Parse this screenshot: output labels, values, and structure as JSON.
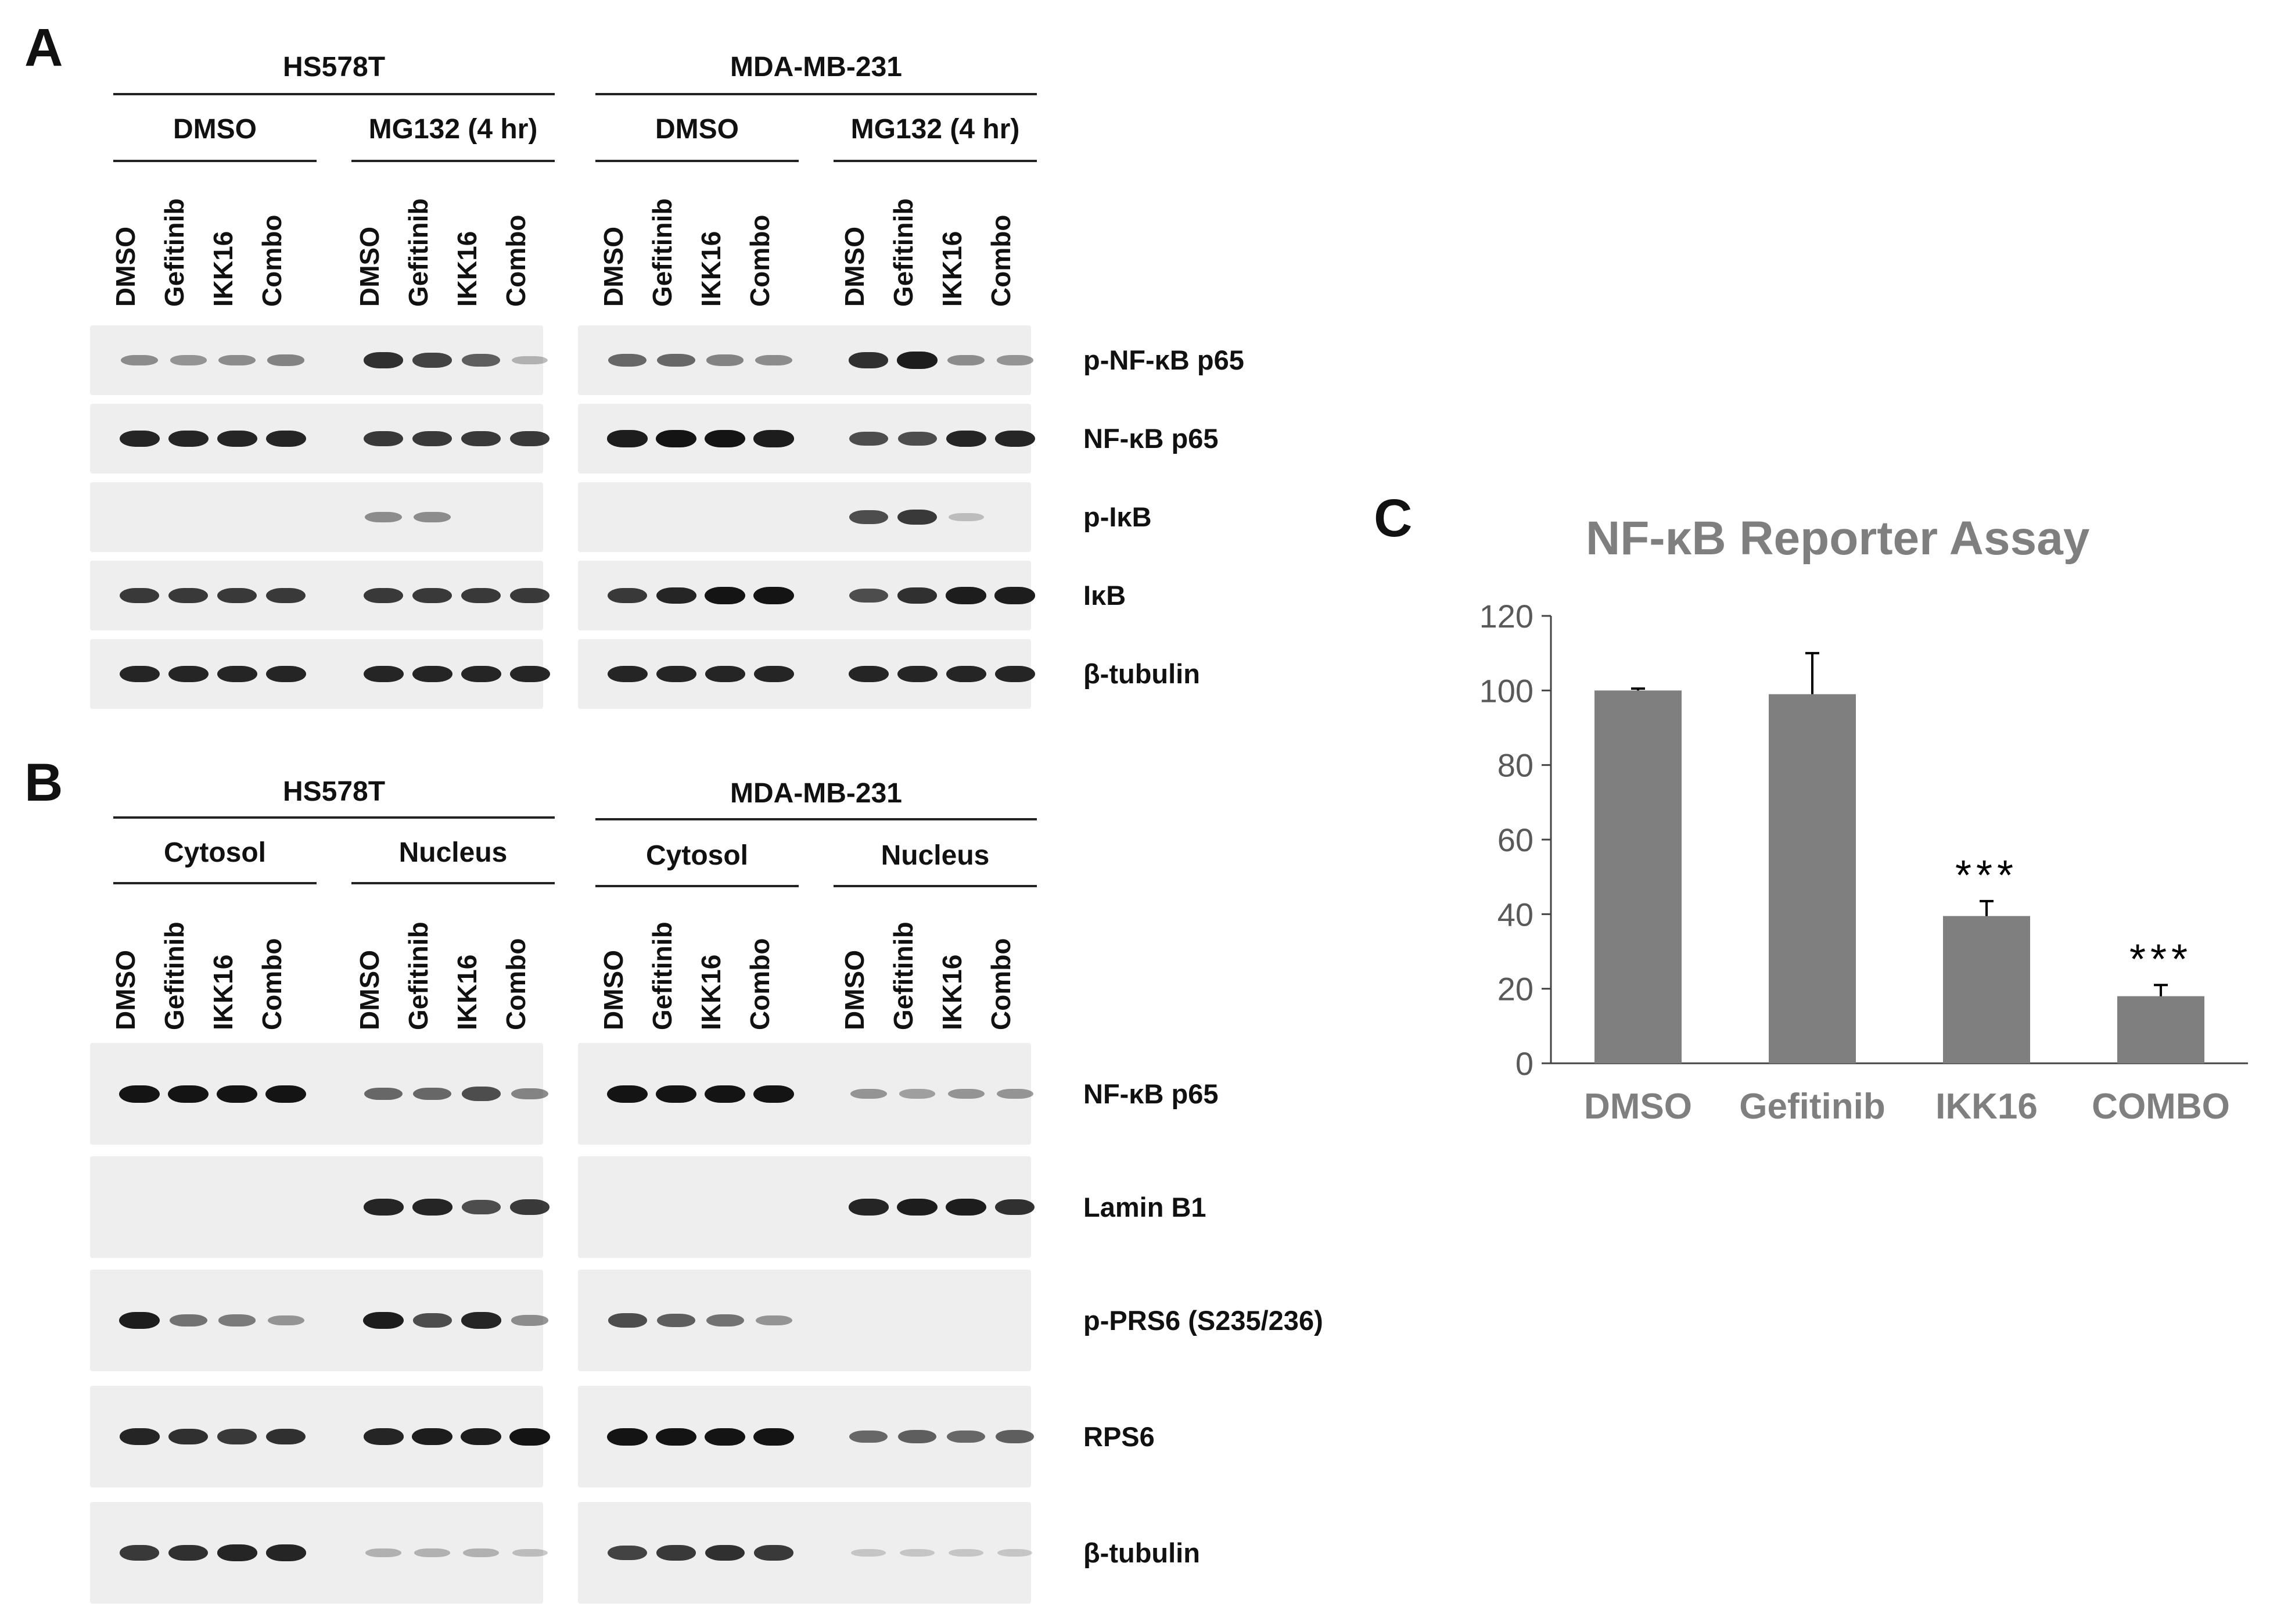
{
  "panel_a": {
    "letter": "A",
    "cell_lines": [
      "HS578T",
      "MDA-MB-231"
    ],
    "conditions": [
      "DMSO",
      "MG132 (4 hr)",
      "DMSO",
      "MG132 (4 hr)"
    ],
    "lanes": [
      "DMSO",
      "Gefitinib",
      "IKK16",
      "Combo"
    ],
    "proteins": [
      "p-NF-κB p65",
      "NF-κB p65",
      "p-IκB",
      "IκB",
      "β-tubulin"
    ],
    "band_intensity": [
      [
        0.35,
        0.3,
        0.35,
        0.4,
        0.85,
        0.75,
        0.6,
        0.15,
        0.55,
        0.55,
        0.4,
        0.35,
        0.85,
        0.95,
        0.35,
        0.3
      ],
      [
        0.9,
        0.9,
        0.9,
        0.9,
        0.8,
        0.8,
        0.8,
        0.8,
        0.95,
        1,
        1,
        0.95,
        0.7,
        0.7,
        0.9,
        0.9
      ],
      [
        0,
        0,
        0,
        0,
        0.35,
        0.35,
        0,
        0,
        0,
        0,
        0,
        0,
        0.7,
        0.8,
        0.1,
        0
      ],
      [
        0.8,
        0.8,
        0.8,
        0.8,
        0.8,
        0.8,
        0.8,
        0.8,
        0.8,
        0.9,
        1,
        1,
        0.7,
        0.85,
        0.95,
        0.95
      ],
      [
        0.9,
        0.9,
        0.9,
        0.9,
        0.9,
        0.9,
        0.9,
        0.9,
        0.9,
        0.9,
        0.9,
        0.9,
        0.9,
        0.9,
        0.9,
        0.9
      ]
    ]
  },
  "panel_b": {
    "letter": "B",
    "cell_lines": [
      "HS578T",
      "MDA-MB-231"
    ],
    "fractions": [
      "Cytosol",
      "Nucleus",
      "Cytosol",
      "Nucleus"
    ],
    "lanes": [
      "DMSO",
      "Gefitinib",
      "IKK16",
      "Combo"
    ],
    "proteins": [
      "NF-κB p65",
      "Lamin B1",
      "p-PRS6 (S235/236)",
      "RPS6",
      "β-tubulin"
    ],
    "band_intensity": [
      [
        1,
        1,
        1,
        1,
        0.55,
        0.55,
        0.7,
        0.4,
        1,
        1,
        1,
        1,
        0.3,
        0.25,
        0.3,
        0.3
      ],
      [
        0,
        0,
        0,
        0,
        0.9,
        0.9,
        0.7,
        0.8,
        0,
        0,
        0,
        0,
        0.9,
        0.95,
        0.95,
        0.85
      ],
      [
        0.95,
        0.5,
        0.45,
        0.3,
        0.95,
        0.7,
        0.9,
        0.35,
        0.7,
        0.6,
        0.5,
        0.3,
        0,
        0,
        0,
        0
      ],
      [
        0.9,
        0.85,
        0.8,
        0.85,
        0.9,
        0.95,
        0.95,
        1,
        1,
        1,
        1,
        1,
        0.55,
        0.6,
        0.55,
        0.6
      ],
      [
        0.8,
        0.85,
        0.9,
        0.9,
        0.15,
        0.15,
        0.15,
        0.1,
        0.75,
        0.8,
        0.85,
        0.8,
        0.05,
        0.05,
        0.05,
        0.05
      ]
    ]
  },
  "panel_c": {
    "letter": "C",
    "title": "NF-κB Reporter Assay"
  },
  "chart_data": {
    "type": "bar",
    "title": "NF-κB Reporter Assay",
    "categories": [
      "DMSO",
      "Gefitinib",
      "IKK16",
      "COMBO"
    ],
    "values": [
      100,
      99,
      39.5,
      18
    ],
    "error": [
      0.5,
      11,
      4,
      3
    ],
    "significance": [
      "",
      "",
      "***",
      "***"
    ],
    "ylim": [
      0,
      120
    ],
    "yticks": [
      0,
      20,
      40,
      60,
      80,
      100,
      120
    ],
    "bar_color": "#7f7f7f",
    "grid": false
  }
}
